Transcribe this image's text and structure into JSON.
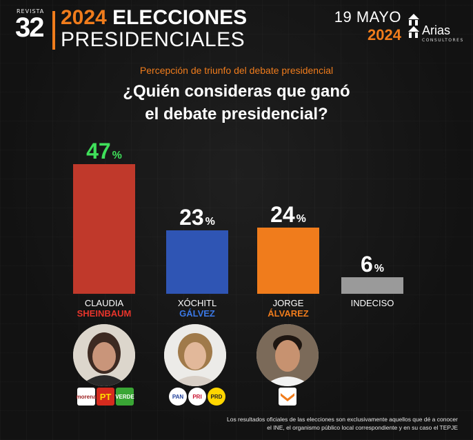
{
  "header": {
    "brand_small": "REVISTA",
    "brand_big": "32",
    "title_year": "2024",
    "title_rest": "ELECCIONES",
    "title_line2": "PRESIDENCIALES",
    "date_line1": "19 MAYO",
    "date_line2": "2024",
    "pollster_name": "Arias",
    "pollster_sub": "CONSULTORES"
  },
  "subtitle": "Percepción de triunfo del debate presidencial",
  "question_line1": "¿Quién consideras que ganó",
  "question_line2": "el debate presidencial?",
  "chart_data": {
    "type": "bar",
    "categories": [
      "CLAUDIA SHEINBAUM",
      "XÓCHITL GÁLVEZ",
      "JORGE ÁLVAREZ",
      "INDECISO"
    ],
    "values": [
      47,
      23,
      24,
      6
    ],
    "unit": "%",
    "ylim": [
      0,
      47
    ],
    "bar_colors": [
      "#c0392b",
      "#2f55b4",
      "#f07c1c",
      "#9a9a9a"
    ],
    "value_label_colors": [
      "#3fe05a",
      "#ffffff",
      "#ffffff",
      "#ffffff"
    ],
    "title": "¿Quién consideras que ganó el debate presidencial?",
    "grid": false
  },
  "candidates": [
    {
      "first": "CLAUDIA",
      "last": "SHEINBAUM",
      "last_color": "#e8342b",
      "parties": [
        "morena",
        "PT",
        "VERDE"
      ]
    },
    {
      "first": "XÓCHITL",
      "last": "GÁLVEZ",
      "last_color": "#3a78e6",
      "parties": [
        "PAN",
        "PRI",
        "PRD"
      ]
    },
    {
      "first": "JORGE",
      "last": "ÁLVAREZ",
      "last_color": "#f07c1c",
      "parties": [
        "MC"
      ]
    },
    {
      "first": "INDECISO",
      "last": "",
      "last_color": "#ffffff",
      "parties": []
    }
  ],
  "footnote_line1": "Los resultados oficiales de las elecciones son exclusivamente aquellos que dé a conocer",
  "footnote_line2": "el INE, el organismo público local correspondiente y en su caso el TEPJE"
}
